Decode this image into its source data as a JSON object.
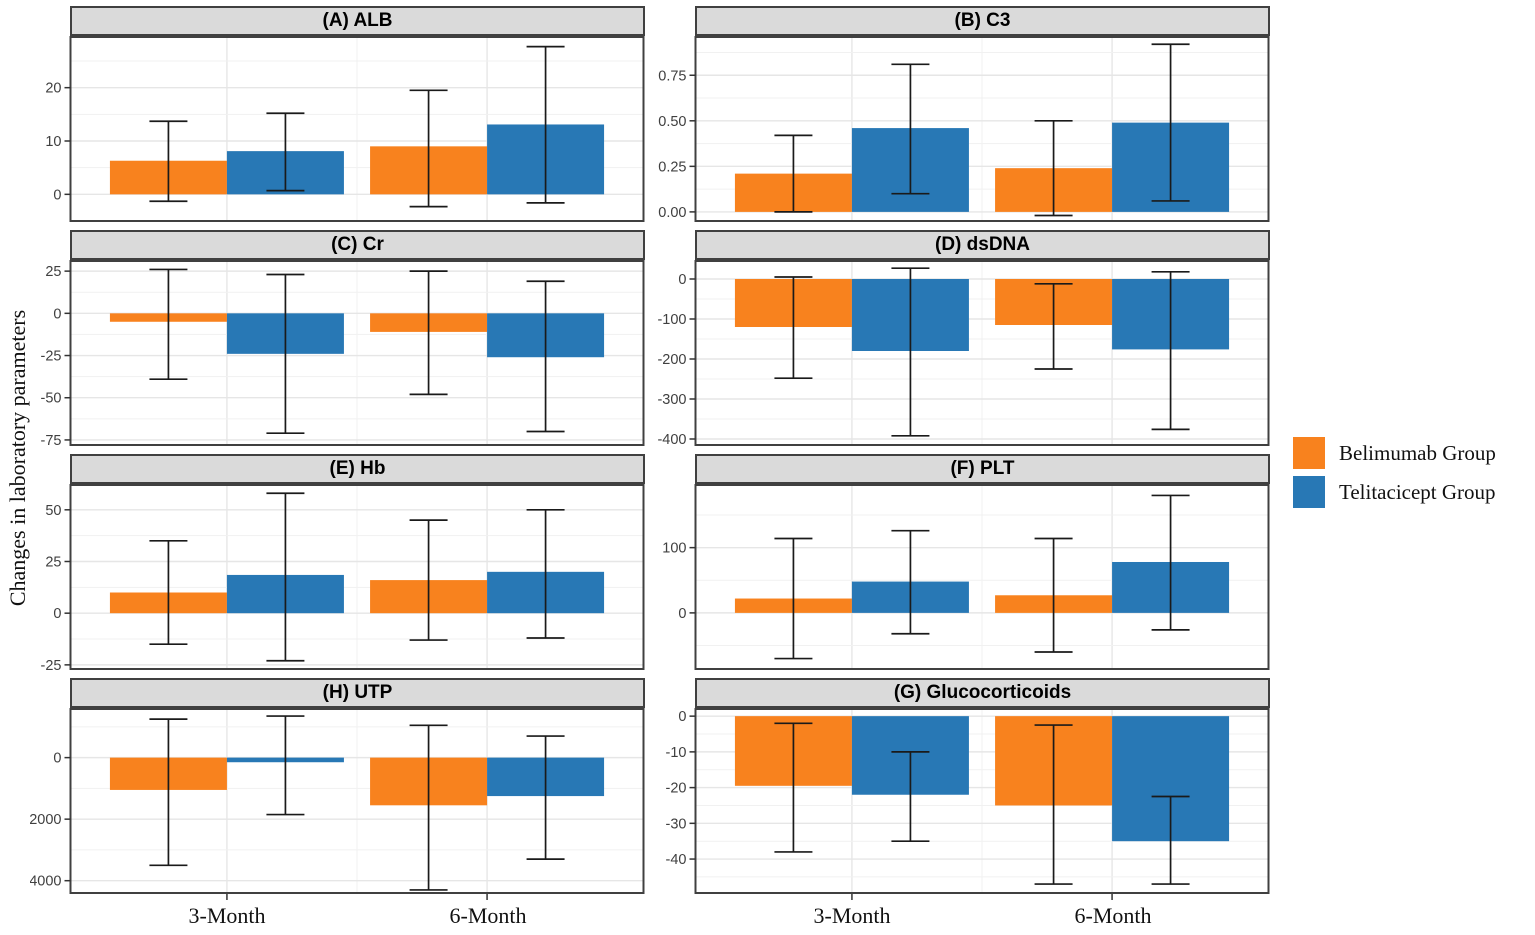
{
  "axis": {
    "y_label": "Changes in laboratory parameters"
  },
  "legend": {
    "items": [
      {
        "label": "Belimumab Group",
        "color": "#F8821E"
      },
      {
        "label": "Telitacicept Group",
        "color": "#2878B5"
      }
    ]
  },
  "chart_data": {
    "type": "bar",
    "layout": "2x4 facet grid, grouped (dodged) bars with error bars, legend right",
    "categories": [
      "3-Month",
      "6-Month"
    ],
    "grid": "on",
    "panels": [
      {
        "id": "A",
        "title": "(A) ALB",
        "ylim": [
          -5,
          29.5
        ],
        "yticks": [
          [
            0,
            "0"
          ],
          [
            10,
            "10"
          ],
          [
            20,
            "20"
          ]
        ],
        "series": [
          {
            "name": "Belimumab Group",
            "values": [
              6.3,
              9.0
            ],
            "err_low": [
              -1.3,
              -2.3
            ],
            "err_high": [
              13.7,
              19.5
            ]
          },
          {
            "name": "Telitacicept Group",
            "values": [
              8.1,
              13.1
            ],
            "err_low": [
              0.7,
              -1.6
            ],
            "err_high": [
              15.2,
              27.7
            ]
          }
        ]
      },
      {
        "id": "B",
        "title": "(B) C3",
        "ylim": [
          -0.05,
          0.96
        ],
        "yticks": [
          [
            0,
            "0.00"
          ],
          [
            0.25,
            "0.25"
          ],
          [
            0.5,
            "0.50"
          ],
          [
            0.75,
            "0.75"
          ]
        ],
        "series": [
          {
            "name": "Belimumab Group",
            "values": [
              0.21,
              0.24
            ],
            "err_low": [
              0.0,
              -0.02
            ],
            "err_high": [
              0.42,
              0.5
            ]
          },
          {
            "name": "Telitacicept Group",
            "values": [
              0.46,
              0.49
            ],
            "err_low": [
              0.1,
              0.06
            ],
            "err_high": [
              0.81,
              0.92
            ]
          }
        ]
      },
      {
        "id": "C",
        "title": "(C) Cr",
        "ylim": [
          -78,
          31
        ],
        "yticks": [
          [
            25,
            "25"
          ],
          [
            0,
            "0"
          ],
          [
            -25,
            "-25"
          ],
          [
            -50,
            "-50"
          ],
          [
            -75,
            "-75"
          ]
        ],
        "series": [
          {
            "name": "Belimumab Group",
            "values": [
              -5,
              -11
            ],
            "err_low": [
              -39,
              -48
            ],
            "err_high": [
              26,
              25
            ]
          },
          {
            "name": "Telitacicept Group",
            "values": [
              -24,
              -26
            ],
            "err_low": [
              -71,
              -70
            ],
            "err_high": [
              23,
              19
            ]
          }
        ]
      },
      {
        "id": "D",
        "title": "(D) dsDNA",
        "ylim": [
          -415,
          45
        ],
        "yticks": [
          [
            0,
            "0"
          ],
          [
            -100,
            "-100"
          ],
          [
            -200,
            "-200"
          ],
          [
            -300,
            "-300"
          ],
          [
            -400,
            "-400"
          ]
        ],
        "series": [
          {
            "name": "Belimumab Group",
            "values": [
              -120,
              -115
            ],
            "err_low": [
              -248,
              -225
            ],
            "err_high": [
              5,
              -12
            ]
          },
          {
            "name": "Telitacicept Group",
            "values": [
              -180,
              -176
            ],
            "err_low": [
              -392,
              -376
            ],
            "err_high": [
              27,
              18
            ]
          }
        ]
      },
      {
        "id": "E",
        "title": "(E) Hb",
        "ylim": [
          -27,
          62
        ],
        "yticks": [
          [
            50,
            "50"
          ],
          [
            25,
            "25"
          ],
          [
            0,
            "0"
          ],
          [
            -25,
            "-25"
          ]
        ],
        "series": [
          {
            "name": "Belimumab Group",
            "values": [
              10,
              16
            ],
            "err_low": [
              -15,
              -13
            ],
            "err_high": [
              35,
              45
            ]
          },
          {
            "name": "Telitacicept Group",
            "values": [
              18.5,
              20
            ],
            "err_low": [
              -23,
              -12
            ],
            "err_high": [
              58,
              50
            ]
          }
        ]
      },
      {
        "id": "F",
        "title": "(F) PLT",
        "ylim": [
          -86,
          196
        ],
        "yticks": [
          [
            100,
            "100"
          ],
          [
            0,
            "0"
          ]
        ],
        "series": [
          {
            "name": "Belimumab Group",
            "values": [
              22,
              27
            ],
            "err_low": [
              -70,
              -60
            ],
            "err_high": [
              114,
              114
            ]
          },
          {
            "name": "Telitacicept Group",
            "values": [
              48,
              78
            ],
            "err_low": [
              -32,
              -26
            ],
            "err_high": [
              126,
              180
            ]
          }
        ]
      },
      {
        "id": "H",
        "title": "(H) UTP",
        "ylim": [
          -4400,
          1580
        ],
        "yticks": [
          [
            0,
            "0"
          ],
          [
            -2000,
            "-2000"
          ],
          [
            -4000,
            "-4000"
          ]
        ],
        "series": [
          {
            "name": "Belimumab Group",
            "values": [
              -1050,
              -1550
            ],
            "err_low": [
              -3500,
              -4300
            ],
            "err_high": [
              1250,
              1050
            ]
          },
          {
            "name": "Telitacicept Group",
            "values": [
              -150,
              -1250
            ],
            "err_low": [
              -1850,
              -3300
            ],
            "err_high": [
              1350,
              700
            ]
          }
        ]
      },
      {
        "id": "G",
        "title": "(G) Glucocorticoids",
        "ylim": [
          -49.5,
          2
        ],
        "yticks": [
          [
            0,
            "0"
          ],
          [
            -10,
            "-10"
          ],
          [
            -20,
            "-20"
          ],
          [
            -30,
            "-30"
          ],
          [
            -40,
            "-40"
          ]
        ],
        "series": [
          {
            "name": "Belimumab Group",
            "values": [
              -19.5,
              -25
            ],
            "err_low": [
              -38,
              -47
            ],
            "err_high": [
              -2,
              -2.5
            ]
          },
          {
            "name": "Telitacicept Group",
            "values": [
              -22,
              -35
            ],
            "err_low": [
              -35,
              -47
            ],
            "err_high": [
              -10,
              -22.5
            ]
          }
        ]
      }
    ],
    "style": {
      "bar_colors": [
        "#F8821E",
        "#2878B5"
      ],
      "strip_background": "#DADADA",
      "panel_border": "#404040",
      "grid_major": "#E6E6E6",
      "grid_minor": "#F1F1F1",
      "errorbar_color": "#1A1A1A",
      "tick_label_color": "#404040"
    }
  }
}
